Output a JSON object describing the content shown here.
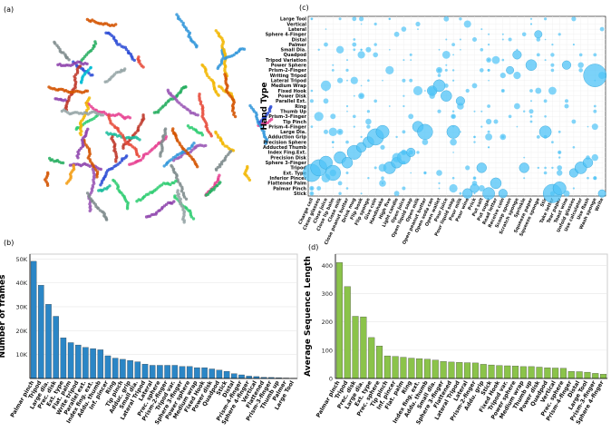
{
  "panel_labels": {
    "a": "(a)",
    "b": "(b)",
    "c": "(c)",
    "d": "(d)"
  },
  "chart_data": [
    {
      "panel": "a",
      "type": "scatter",
      "title": "",
      "xlabel": "",
      "ylabel": "",
      "grid": false,
      "legend": "none",
      "cluster_colors": [
        "#e74c3c",
        "#2f4fd6",
        "#f2b705",
        "#27ae60",
        "#9b59b6",
        "#f39c12",
        "#95a5a6",
        "#e84393",
        "#00bcd4",
        "#8e44ad",
        "#c0392b",
        "#1abc9c",
        "#7f8c8d",
        "#d35400",
        "#2ecc71",
        "#3498db"
      ]
    },
    {
      "panel": "b",
      "type": "bar",
      "title": "",
      "xlabel": "",
      "ylabel": "Number of frames",
      "ylim": [
        0,
        52000
      ],
      "yticks": [
        "10K",
        "20K",
        "30K",
        "40K",
        "50K"
      ],
      "ytick_values": [
        10000,
        20000,
        30000,
        40000,
        50000
      ],
      "grid": true,
      "bar_color": "#2b86c6",
      "categories": [
        "Palmar pinch",
        "Tripod",
        "Large dia.",
        "Prec. disk",
        "Ext. type",
        "Flat. palm",
        "Write tripod",
        "Parallel ext.",
        "Index fing. ext.",
        "Addu. thumb",
        "Inf. pincer",
        "Ring",
        "Tip pinch",
        "Adduc. grip",
        "Small dia.",
        "Lateral Tripod",
        "Lateral",
        "Prec. sphere",
        "Prism-2-finger",
        "Tripod var.",
        "Sphere 3-finger",
        "Power sphere",
        "Medium wrap",
        "Fixed Hook",
        "Power disk",
        "Quadpod",
        "Stick",
        "Distal",
        "Prism-4-finger",
        "Sphere 4-finger",
        "Vertical",
        "Flattened",
        "Prism-3-finger",
        "Thumb up",
        "Palmer",
        "Large Tool"
      ],
      "values": [
        49000,
        39000,
        31000,
        26000,
        17000,
        15000,
        14000,
        13000,
        12500,
        12000,
        9500,
        8500,
        8000,
        7500,
        7000,
        6000,
        5500,
        5500,
        5500,
        5500,
        5000,
        5000,
        4500,
        4500,
        4000,
        3500,
        3000,
        2000,
        1500,
        1000,
        800,
        500,
        400,
        300,
        200,
        100
      ]
    },
    {
      "panel": "c",
      "type": "scatter",
      "title": "",
      "xlabel": "",
      "ylabel": "Hand Type",
      "grid": true,
      "bubble_color": "#4fc3f7",
      "y_categories": [
        "Stick",
        "Palmar Pinch",
        "Flattened Palm",
        "Inferior Pincer",
        "Ext. Type",
        "Tripod",
        "Sphere 3-Finger",
        "Precision Disk",
        "Index Fing.Ext.",
        "Adducted Thumb",
        "Precision Sphere",
        "Adduction Grip",
        "Large Dia.",
        "Prism-4-Finger",
        "Tip Pinch",
        "Prism-3-Finger",
        "Thumb Up",
        "Ring",
        "Parallel Ext.",
        "Power Disk",
        "Fixed Hook",
        "Medium Wrap",
        "Lateral Tripod",
        "Writing Tripod",
        "Prism-2-Finger",
        "Power Sphere",
        "Tripod Variation",
        "Quadpod",
        "Small Dia.",
        "Palmer",
        "Distal",
        "Sphere 4-Finger",
        "Lateral",
        "Vertical",
        "Large Tool"
      ],
      "x_categories": [
        "Charge cell",
        "Clean glasses",
        "Close juice",
        "Close lip balm",
        "Close milk",
        "Close peanut butter",
        "Drink mug",
        "Flip book",
        "Flip sponge",
        "Give coin",
        "Handshake",
        "High five",
        "Light candle",
        "Open juice",
        "Open liquid soap",
        "Open milk",
        "Open peanut butter",
        "Open soda can",
        "Open wallet",
        "Pour juice",
        "Pour liquid soap",
        "Pour milk",
        "Pour wine",
        "Prick",
        "Put salt",
        "Put sugar",
        "Read letter",
        "Receive coin",
        "Scoop spoon",
        "Scratch sponge",
        "Sprinkle",
        "Squeeze paper",
        "Squeeze sponge",
        "Stir",
        "Take letter",
        "Tear paper",
        "Toast wine",
        "Unfold glasses",
        "Use calculator",
        "Use flash",
        "Wash sponge",
        "Write"
      ],
      "points": [
        {
          "x": "Charge cell",
          "y": "Ext. Type",
          "size": 3.2
        },
        {
          "x": "Clean glasses",
          "y": "Tripod",
          "size": 3.0
        },
        {
          "x": "Close juice",
          "y": "Sphere 3-Finger",
          "size": 2.4
        },
        {
          "x": "Close lip balm",
          "y": "Ext. Type",
          "size": 2.8
        },
        {
          "x": "Close milk",
          "y": "Precision Disk",
          "size": 2.2
        },
        {
          "x": "Close peanut butter",
          "y": "Sphere 3-Finger",
          "size": 2.0
        },
        {
          "x": "Drink mug",
          "y": "Index Fing.Ext.",
          "size": 2.6
        },
        {
          "x": "Flip book",
          "y": "Adducted Thumb",
          "size": 1.8
        },
        {
          "x": "Flip sponge",
          "y": "Precision Sphere",
          "size": 2.0
        },
        {
          "x": "Give coin",
          "y": "Adduction Grip",
          "size": 3.0
        },
        {
          "x": "Handshake",
          "y": "Large Dia.",
          "size": 2.4
        },
        {
          "x": "High five",
          "y": "Tripod",
          "size": 2.2
        },
        {
          "x": "Light candle",
          "y": "Sphere 3-Finger",
          "size": 2.0
        },
        {
          "x": "Open juice",
          "y": "Precision Disk",
          "size": 2.4
        },
        {
          "x": "Open liquid soap",
          "y": "Index Fing.Ext.",
          "size": 1.6
        },
        {
          "x": "Open milk",
          "y": "Prism-4-Finger",
          "size": 2.0
        },
        {
          "x": "Open peanut butter",
          "y": "Large Dia.",
          "size": 2.8
        },
        {
          "x": "Open soda can",
          "y": "Fixed Hook",
          "size": 1.8
        },
        {
          "x": "Open wallet",
          "y": "Medium Wrap",
          "size": 2.2
        },
        {
          "x": "Pour juice",
          "y": "Power Disk",
          "size": 2.0
        },
        {
          "x": "Pour liquid soap",
          "y": "Large Dia.",
          "size": 2.4
        },
        {
          "x": "Pour milk",
          "y": "Parallel Ext.",
          "size": 1.6
        },
        {
          "x": "Pour wine",
          "y": "Stick",
          "size": 1.8
        },
        {
          "x": "Prick",
          "y": "Palmar Pinch",
          "size": 1.6
        },
        {
          "x": "Put salt",
          "y": "Tripod",
          "size": 1.8
        },
        {
          "x": "Put sugar",
          "y": "Stick",
          "size": 2.2
        },
        {
          "x": "Read letter",
          "y": "Flattened Palm",
          "size": 2.0
        },
        {
          "x": "Receive coin",
          "y": "Stick",
          "size": 1.6
        },
        {
          "x": "Scoop spoon",
          "y": "Prism-2-Finger",
          "size": 1.4
        },
        {
          "x": "Scratch sponge",
          "y": "Quadpod",
          "size": 1.6
        },
        {
          "x": "Sprinkle",
          "y": "Tripod",
          "size": 1.8
        },
        {
          "x": "Squeeze paper",
          "y": "Power Sphere",
          "size": 2.0
        },
        {
          "x": "Squeeze sponge",
          "y": "Sphere 4-Finger",
          "size": 1.4
        },
        {
          "x": "Stir",
          "y": "Large Dia.",
          "size": 2.2
        },
        {
          "x": "Take letter",
          "y": "Stick",
          "size": 3.4
        },
        {
          "x": "Tear paper",
          "y": "Palmar Pinch",
          "size": 2.4
        },
        {
          "x": "Toast wine",
          "y": "Power Sphere",
          "size": 1.6
        },
        {
          "x": "Unfold glasses",
          "y": "Ext. Type",
          "size": 1.6
        },
        {
          "x": "Use calculator",
          "y": "Tripod",
          "size": 2.2
        },
        {
          "x": "Use flash",
          "y": "Sphere 3-Finger",
          "size": 1.8
        },
        {
          "x": "Wash sponge",
          "y": "Writing Tripod",
          "size": 4.2
        },
        {
          "x": "Write",
          "y": "Stick",
          "size": 1.4
        }
      ]
    },
    {
      "panel": "d",
      "type": "bar",
      "title": "",
      "xlabel": "",
      "ylabel": "Average Sequence Length",
      "ylim": [
        0,
        440
      ],
      "yticks": [
        "0",
        "100",
        "200",
        "300",
        "400"
      ],
      "ytick_values": [
        0,
        100,
        200,
        300,
        400
      ],
      "grid": true,
      "bar_color": "#8bc34a",
      "categories": [
        "Palmar pinch",
        "Tripod",
        "Prec. disk",
        "Large dia.",
        "Ext. type",
        "Prec. sphere",
        "Tip pinch",
        "Inf. pincer",
        "Flat. palm",
        "Ring",
        "Index fing. ext.",
        "Addu. thumb",
        "Small dia.",
        "Sphere 3-finger",
        "Flattened",
        "Lateral Tripod",
        "Lateral",
        "Prism-2-finger",
        "Addu. grip",
        "Stick",
        "Fixed Hook",
        "Tripod var.",
        "Power sphere",
        "Medium wrap",
        "Thumb up",
        "Power disk",
        "Quadpod",
        "Vertical",
        "Prec. sphere",
        "Prism-4-finger",
        "Distal",
        "Large Tool",
        "Prism-3-finger",
        "Sphere 4-finger"
      ],
      "values": [
        410,
        325,
        220,
        218,
        145,
        115,
        80,
        78,
        75,
        72,
        70,
        68,
        65,
        60,
        58,
        57,
        56,
        55,
        50,
        48,
        46,
        45,
        44,
        42,
        42,
        40,
        38,
        37,
        36,
        25,
        24,
        22,
        18,
        15
      ]
    }
  ]
}
